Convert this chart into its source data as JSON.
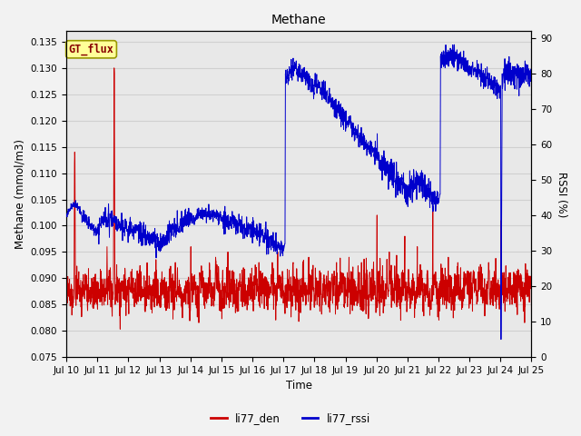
{
  "title": "Methane",
  "xlabel": "Time",
  "ylabel_left": "Methane (mmol/m3)",
  "ylabel_right": "RSSI (%)",
  "ylim_left": [
    0.075,
    0.137
  ],
  "ylim_right": [
    0,
    92
  ],
  "yticks_left": [
    0.075,
    0.08,
    0.085,
    0.09,
    0.095,
    0.1,
    0.105,
    0.11,
    0.115,
    0.12,
    0.125,
    0.13,
    0.135
  ],
  "ytick_labels_left": [
    "0.075",
    "0.080",
    "0.085",
    "0.090",
    "0.095",
    "0.100",
    "0.105",
    "0.110",
    "0.115",
    "0.120",
    "0.125",
    "0.130",
    "0.135"
  ],
  "yticks_right": [
    0,
    10,
    20,
    30,
    40,
    50,
    60,
    70,
    80,
    90
  ],
  "ytick_labels_right": [
    "0",
    "10",
    "20",
    "30",
    "40",
    "50",
    "60",
    "70",
    "80",
    "90"
  ],
  "xtick_labels": [
    "Jul 10",
    "Jul 11",
    "Jul 12",
    "Jul 13",
    "Jul 14",
    "Jul 15",
    "Jul 16",
    "Jul 17",
    "Jul 18",
    "Jul 19",
    "Jul 20",
    "Jul 21",
    "Jul 22",
    "Jul 23",
    "Jul 24",
    "Jul 25"
  ],
  "grid_color": "#d0d0d0",
  "bg_color": "#e8e8e8",
  "fig_color": "#f2f2f2",
  "line_color_red": "#cc0000",
  "line_color_blue": "#0000cc",
  "legend_label_red": "li77_den",
  "legend_label_blue": "li77_rssi",
  "annotation_text": "GT_flux",
  "annotation_bg": "#ffff99",
  "annotation_border": "#999900"
}
